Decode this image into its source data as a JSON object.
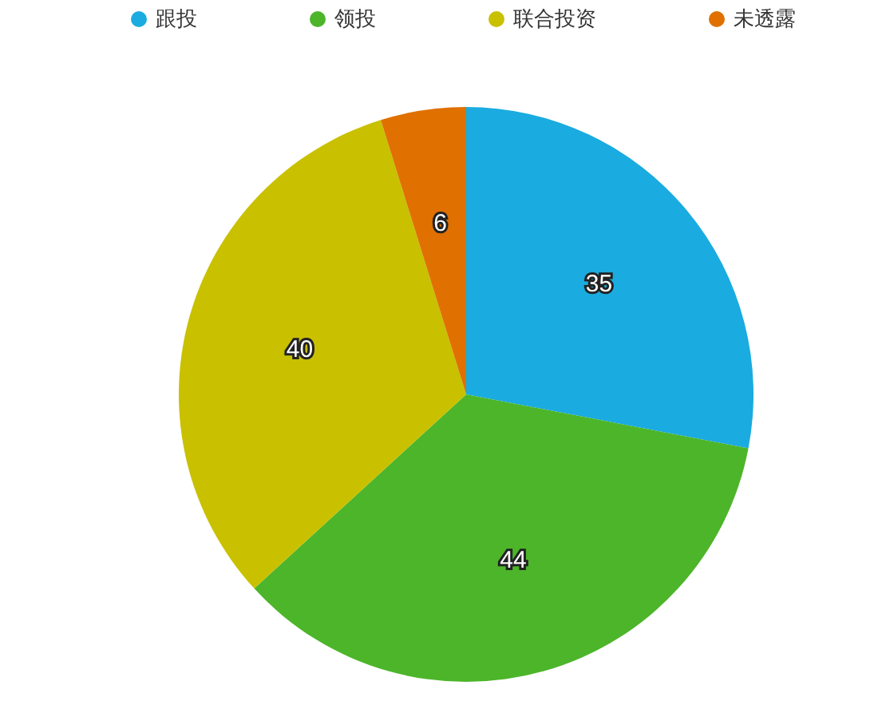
{
  "chart_data": {
    "type": "pie",
    "categories": [
      "跟投",
      "领投",
      "联合投资",
      "未透露"
    ],
    "values": [
      35,
      44,
      40,
      6
    ],
    "colors": [
      "#1aabe0",
      "#4cb52a",
      "#c9c000",
      "#e07000"
    ],
    "legend": "top",
    "data_labels": true
  }
}
